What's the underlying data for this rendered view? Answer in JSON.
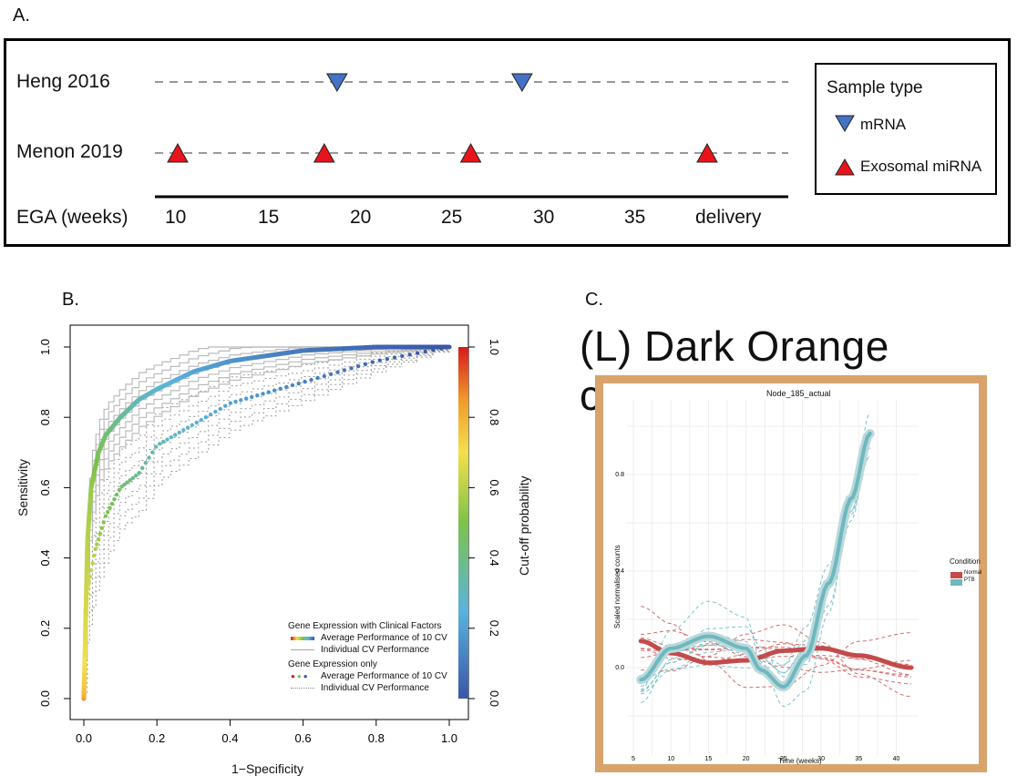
{
  "panel_a": {
    "label": "A.",
    "rows": [
      {
        "name": "Heng 2016",
        "type": "mRNA"
      },
      {
        "name": "Menon 2019",
        "type": "Exosomal miRNA"
      }
    ],
    "axis_label": "EGA (weeks)",
    "ticks": [
      "10",
      "15",
      "20",
      "25",
      "30",
      "35",
      "delivery"
    ],
    "legend": {
      "title": "Sample type",
      "items": [
        {
          "label": "mRNA",
          "color": "#4472C4",
          "shape": "triangle-down"
        },
        {
          "label": "Exosomal miRNA",
          "color": "#E8141B",
          "shape": "triangle-up"
        }
      ]
    }
  },
  "panel_b": {
    "label": "B."
  },
  "panel_c": {
    "label": "C.",
    "title": "(L) Dark Orange cluster",
    "frame_color": "#D9A36B"
  },
  "chart_data": [
    {
      "type": "scatter",
      "title": "",
      "xlabel": "EGA (weeks)",
      "x_ticks": [
        "10",
        "15",
        "20",
        "25",
        "30",
        "35",
        "delivery"
      ],
      "series": [
        {
          "name": "Heng 2016",
          "x": [
            18.7,
            28.8
          ],
          "marker": "triangle-down",
          "color": "#4472C4"
        },
        {
          "name": "Menon 2019",
          "x": [
            10,
            18,
            26,
            "delivery"
          ],
          "marker": "triangle-up",
          "color": "#E8141B"
        }
      ]
    },
    {
      "type": "line",
      "xlabel": "1−Specificity",
      "ylabel": "Sensitivity",
      "y2label": "Cut-off probability",
      "xlim": [
        0,
        1
      ],
      "ylim": [
        0,
        1
      ],
      "x_ticks": [
        "0.0",
        "0.2",
        "0.4",
        "0.6",
        "0.8",
        "1.0"
      ],
      "y_ticks": [
        "0.0",
        "0.2",
        "0.4",
        "0.6",
        "0.8",
        "1.0"
      ],
      "y2_ticks": [
        "0.0",
        "0.2",
        "0.4",
        "0.6",
        "0.8",
        "1.0"
      ],
      "legend": {
        "placement": "bottom-right",
        "groups": [
          {
            "title": "Gene Expression with Clinical Factors",
            "items": [
              "Average Performance of 10 CV",
              "Individual CV Performance"
            ]
          },
          {
            "title": "Gene Expression only",
            "items": [
              "Average Performance of 10 CV",
              "Individual CV Performance"
            ]
          }
        ]
      },
      "series": [
        {
          "name": "Gene Expression with Clinical Factors",
          "x": [
            0.0,
            0.01,
            0.02,
            0.04,
            0.06,
            0.1,
            0.15,
            0.2,
            0.3,
            0.4,
            0.6,
            0.8,
            1.0
          ],
          "y": [
            0.0,
            0.45,
            0.6,
            0.7,
            0.75,
            0.8,
            0.85,
            0.88,
            0.93,
            0.96,
            0.99,
            1.0,
            1.0
          ]
        },
        {
          "name": "Gene Expression only",
          "x": [
            0.0,
            0.01,
            0.03,
            0.06,
            0.1,
            0.15,
            0.2,
            0.3,
            0.4,
            0.5,
            0.6,
            0.7,
            0.8,
            1.0
          ],
          "y": [
            0.0,
            0.3,
            0.42,
            0.52,
            0.6,
            0.64,
            0.72,
            0.78,
            0.84,
            0.87,
            0.9,
            0.93,
            0.96,
            1.0
          ]
        }
      ]
    },
    {
      "type": "line",
      "title": "Node_185_actual",
      "xlabel": "Time (weeks)",
      "ylabel": "Scaled normalised counts",
      "x_ticks": [
        "5",
        "10",
        "15",
        "20",
        "25",
        "30",
        "35",
        "40"
      ],
      "y_ticks": [
        "0.0",
        "0.4",
        "0.8"
      ],
      "legend": {
        "title": "Condition",
        "items": [
          "Normal",
          "PTB"
        ]
      },
      "series": [
        {
          "name": "Normal",
          "color": "#C24B4B",
          "x": [
            6,
            10,
            15,
            20,
            25,
            30,
            35,
            42
          ],
          "y": [
            0.11,
            0.06,
            0.02,
            0.03,
            0.07,
            0.08,
            0.05,
            0.0
          ]
        },
        {
          "name": "PTB",
          "color": "#6FB7BE",
          "x": [
            6,
            10,
            15,
            20,
            22,
            25,
            28,
            31,
            34,
            36.5
          ],
          "y": [
            -0.05,
            0.08,
            0.13,
            0.08,
            -0.01,
            -0.08,
            0.05,
            0.35,
            0.7,
            0.97
          ]
        }
      ]
    }
  ]
}
